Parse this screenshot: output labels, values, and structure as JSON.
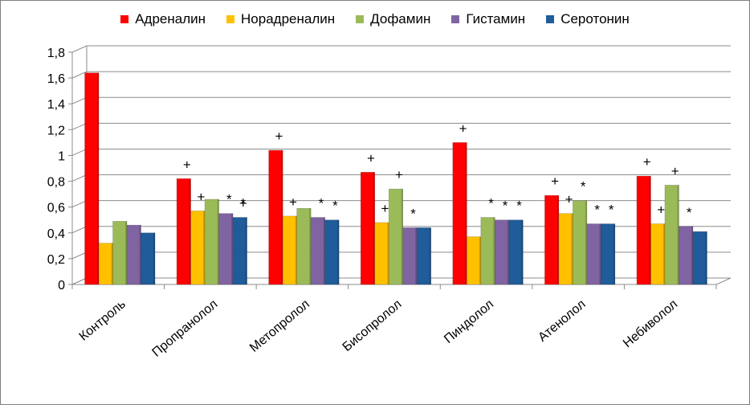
{
  "chart_data": {
    "type": "bar",
    "categories": [
      "Контроль",
      "Пропранолол",
      "Метопролол",
      "Бисопролол",
      "Пиндолол",
      "Атенолол",
      "Небиволол"
    ],
    "series": [
      {
        "name": "Адреналин",
        "color": "#ff0000",
        "values": [
          1.64,
          0.82,
          1.04,
          0.87,
          1.1,
          0.69,
          0.84
        ]
      },
      {
        "name": "Норадреналин",
        "color": "#ffc000",
        "values": [
          0.32,
          0.57,
          0.53,
          0.48,
          0.37,
          0.55,
          0.47
        ]
      },
      {
        "name": "Дофамин",
        "color": "#9bbb59",
        "values": [
          0.49,
          0.66,
          0.59,
          0.74,
          0.52,
          0.65,
          0.77
        ]
      },
      {
        "name": "Гистамин",
        "color": "#8064a2",
        "values": [
          0.46,
          0.55,
          0.52,
          0.44,
          0.5,
          0.47,
          0.45
        ]
      },
      {
        "name": "Серотонин",
        "color": "#1f5c99",
        "values": [
          0.4,
          0.52,
          0.5,
          0.44,
          0.5,
          0.47,
          0.41
        ]
      }
    ],
    "yticks": [
      "0",
      "0,2",
      "0,4",
      "0,6",
      "0,8",
      "1",
      "1,2",
      "1,4",
      "1,6",
      "1,8"
    ],
    "ylim": [
      0,
      1.8
    ],
    "grid": true,
    "legend": "top",
    "annotations": [
      {
        "category": 1,
        "series": 0,
        "text": "+"
      },
      {
        "category": 1,
        "series": 1,
        "text": "+"
      },
      {
        "category": 1,
        "series": 3,
        "text": "*"
      },
      {
        "category": 1,
        "series": 4,
        "text": "*"
      },
      {
        "category": 1,
        "series": 4,
        "text": "+"
      },
      {
        "category": 2,
        "series": 0,
        "text": "+"
      },
      {
        "category": 2,
        "series": 1,
        "text": "+"
      },
      {
        "category": 2,
        "series": 3,
        "text": "*"
      },
      {
        "category": 2,
        "series": 4,
        "text": "*"
      },
      {
        "category": 3,
        "series": 0,
        "text": "+"
      },
      {
        "category": 3,
        "series": 1,
        "text": "+"
      },
      {
        "category": 3,
        "series": 2,
        "text": "+"
      },
      {
        "category": 3,
        "series": 3,
        "text": "*"
      },
      {
        "category": 4,
        "series": 0,
        "text": "+"
      },
      {
        "category": 4,
        "series": 2,
        "text": "*"
      },
      {
        "category": 4,
        "series": 3,
        "text": "*"
      },
      {
        "category": 4,
        "series": 4,
        "text": "*"
      },
      {
        "category": 5,
        "series": 0,
        "text": "+"
      },
      {
        "category": 5,
        "series": 1,
        "text": "+"
      },
      {
        "category": 5,
        "series": 2,
        "text": "*"
      },
      {
        "category": 5,
        "series": 3,
        "text": "*"
      },
      {
        "category": 5,
        "series": 4,
        "text": "*"
      },
      {
        "category": 6,
        "series": 0,
        "text": "+"
      },
      {
        "category": 6,
        "series": 1,
        "text": "+"
      },
      {
        "category": 6,
        "series": 2,
        "text": "+"
      },
      {
        "category": 6,
        "series": 3,
        "text": "*"
      }
    ]
  }
}
